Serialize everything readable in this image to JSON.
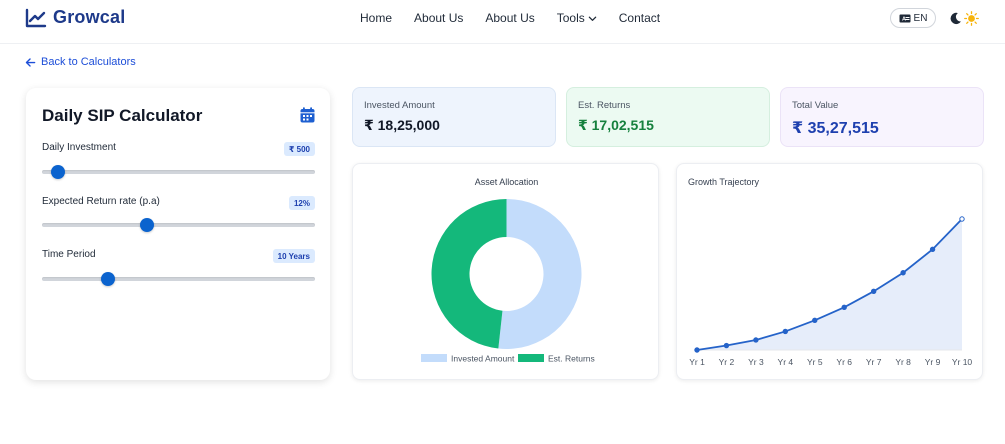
{
  "brand": {
    "name": "Growcal"
  },
  "nav": {
    "items": [
      {
        "label": "Home"
      },
      {
        "label": "About Us"
      },
      {
        "label": "About Us"
      },
      {
        "label": "Tools"
      },
      {
        "label": "Contact"
      }
    ],
    "language_label": "EN"
  },
  "back_link": {
    "label": "Back to Calculators"
  },
  "calculator": {
    "title": "Daily SIP Calculator",
    "fields": [
      {
        "label": "Daily Investment",
        "value": "₹ 500",
        "slider_fraction": 0.06
      },
      {
        "label": "Expected Return rate (p.a)",
        "value": "12%",
        "slider_fraction": 0.385
      },
      {
        "label": "Time Period",
        "value": "10 Years",
        "slider_fraction": 0.24
      }
    ]
  },
  "summary": {
    "invested": {
      "label": "Invested Amount",
      "value": "₹ 18,25,000"
    },
    "returns": {
      "label": "Est. Returns",
      "value": "₹ 17,02,515"
    },
    "total": {
      "label": "Total Value",
      "value": "₹ 35,27,515"
    }
  },
  "colors": {
    "invested": "#c3dcfb",
    "returns": "#14b87b",
    "line": "#2563c9",
    "area": "#e6edfa"
  },
  "chart_data": [
    {
      "type": "pie",
      "title": "Asset Allocation",
      "categories": [
        "Invested Amount",
        "Est. Returns"
      ],
      "values": [
        1825000,
        1702515
      ],
      "legend": "bottom"
    },
    {
      "type": "area",
      "title": "Growth Trajectory",
      "categories": [
        "Yr 1",
        "Yr 2",
        "Yr 3",
        "Yr 4",
        "Yr 5",
        "Yr 6",
        "Yr 7",
        "Yr 8",
        "Yr 9",
        "Yr 10"
      ],
      "values": [
        0,
        120000,
        270000,
        500000,
        800000,
        1150000,
        1580000,
        2080000,
        2710000,
        3527515
      ],
      "ylim": [
        0,
        3527515
      ],
      "grid": false
    }
  ]
}
